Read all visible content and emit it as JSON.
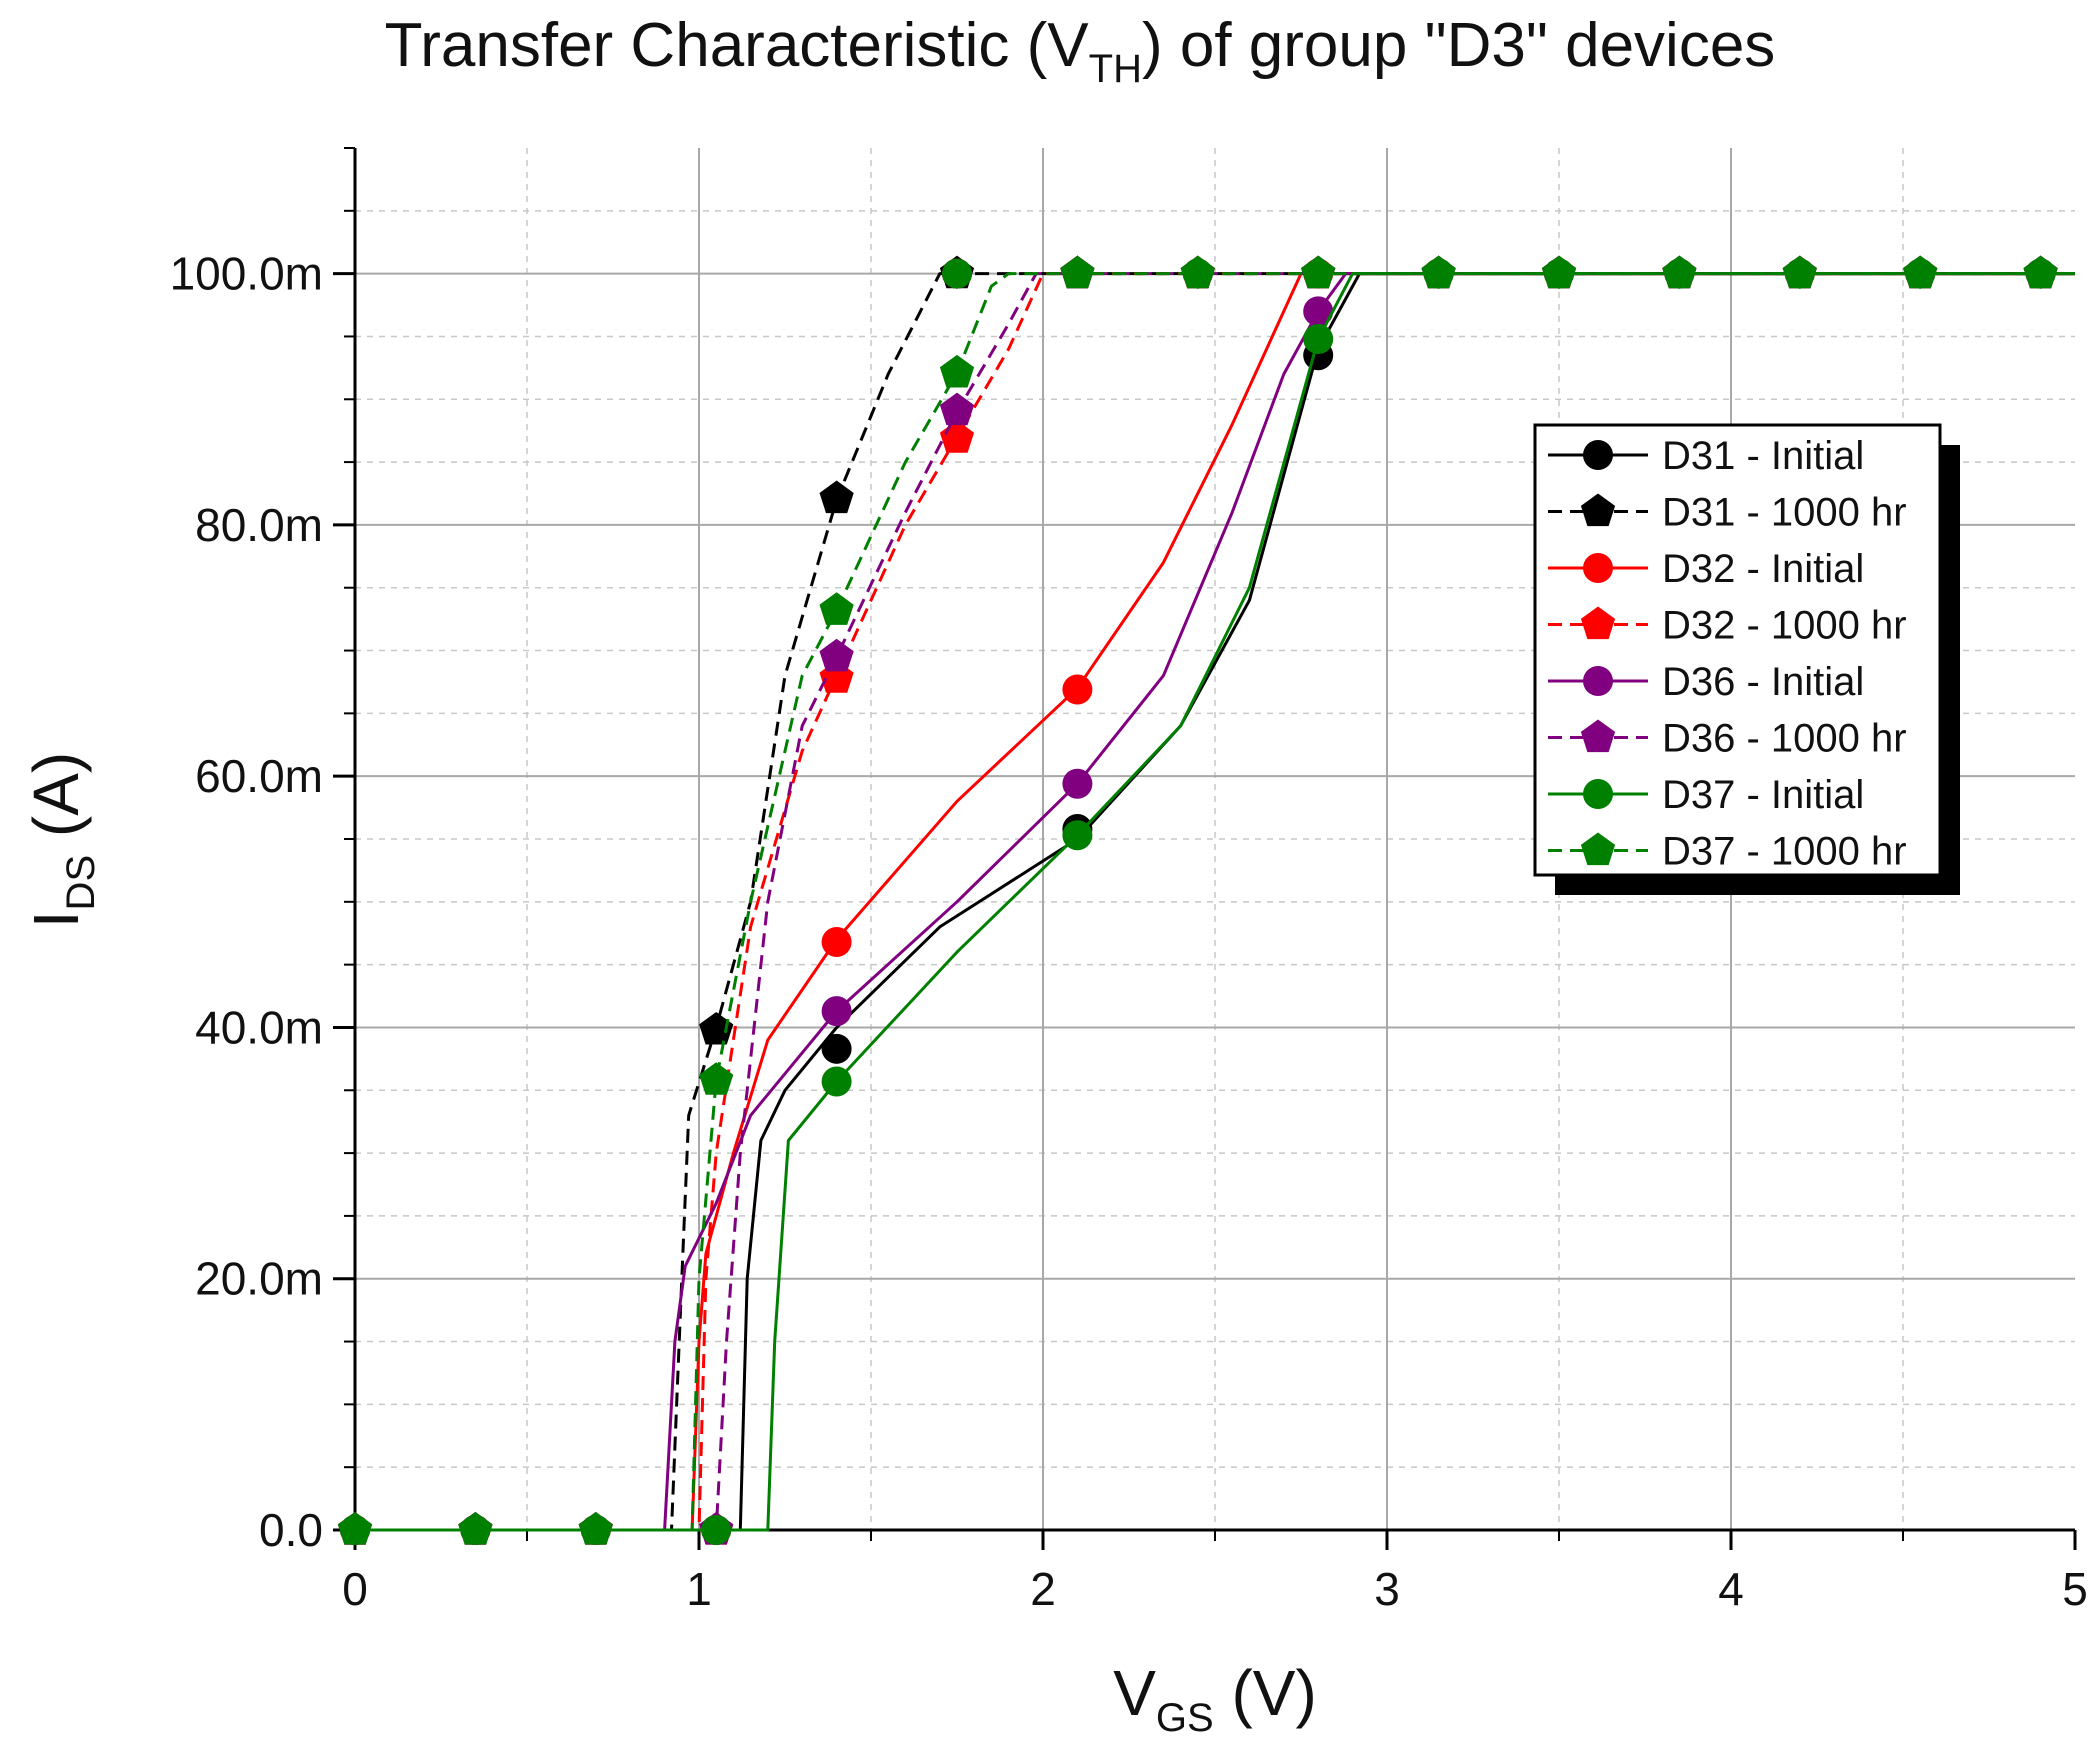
{
  "chart_data": {
    "type": "line",
    "title": {
      "main": "Transfer Characteristic (V",
      "sub": "TH",
      "rest": ") of group \"D3\" devices"
    },
    "xlabel": {
      "main": "V",
      "sub": "GS",
      "rest": " (V)"
    },
    "ylabel": {
      "main": "I",
      "sub": "DS",
      "rest": " (A)"
    },
    "xlim": [
      0,
      5
    ],
    "ylim": [
      0,
      0.11
    ],
    "x_ticks": [
      {
        "value": 0,
        "label": "0"
      },
      {
        "value": 1,
        "label": "1"
      },
      {
        "value": 2,
        "label": "2"
      },
      {
        "value": 3,
        "label": "3"
      },
      {
        "value": 4,
        "label": "4"
      },
      {
        "value": 5,
        "label": "5"
      }
    ],
    "y_ticks": [
      {
        "value": 0,
        "label": "0.0"
      },
      {
        "value": 0.02,
        "label": "20.0m"
      },
      {
        "value": 0.04,
        "label": "40.0m"
      },
      {
        "value": 0.06,
        "label": "60.0m"
      },
      {
        "value": 0.08,
        "label": "80.0m"
      },
      {
        "value": 0.1,
        "label": "100.0m"
      }
    ],
    "grid": true,
    "legend_position": "right",
    "series": [
      {
        "name": "D31 - Initial",
        "color": "#000000",
        "dash": "solid",
        "marker": "circle",
        "curve": [
          [
            0,
            0
          ],
          [
            1.12,
            0
          ],
          [
            1.14,
            0.02
          ],
          [
            1.18,
            0.031
          ],
          [
            1.25,
            0.035
          ],
          [
            1.4,
            0.04
          ],
          [
            1.7,
            0.048
          ],
          [
            2.1,
            0.055
          ],
          [
            2.4,
            0.064
          ],
          [
            2.6,
            0.074
          ],
          [
            2.8,
            0.094
          ],
          [
            2.92,
            0.1
          ],
          [
            5,
            0.1
          ]
        ],
        "markers": [
          [
            0,
            0
          ],
          [
            0.35,
            0
          ],
          [
            0.7,
            0
          ],
          [
            1.05,
            0
          ],
          [
            1.4,
            0.0383
          ],
          [
            1.75,
            0.1
          ],
          [
            2.1,
            0.0558
          ],
          [
            2.45,
            0.1
          ],
          [
            2.8,
            0.0935
          ],
          [
            3.15,
            0.1
          ],
          [
            3.5,
            0.1
          ],
          [
            3.85,
            0.1
          ],
          [
            4.2,
            0.1
          ],
          [
            4.55,
            0.1
          ],
          [
            4.9,
            0.1
          ]
        ]
      },
      {
        "name": "D31 - 1000 hr",
        "color": "#000000",
        "dash": "dashed",
        "marker": "pentagon",
        "curve": [
          [
            0,
            0
          ],
          [
            0.92,
            0
          ],
          [
            0.95,
            0.02
          ],
          [
            0.97,
            0.033
          ],
          [
            1.05,
            0.04
          ],
          [
            1.15,
            0.05
          ],
          [
            1.25,
            0.068
          ],
          [
            1.4,
            0.082
          ],
          [
            1.55,
            0.092
          ],
          [
            1.7,
            0.1
          ],
          [
            5,
            0.1
          ]
        ],
        "markers": [
          [
            0,
            0
          ],
          [
            0.35,
            0
          ],
          [
            0.7,
            0
          ],
          [
            1.05,
            0.0398
          ],
          [
            1.4,
            0.0821
          ],
          [
            1.75,
            0.1
          ],
          [
            2.1,
            0.1
          ],
          [
            2.45,
            0.1
          ],
          [
            2.8,
            0.1
          ],
          [
            3.15,
            0.1
          ],
          [
            3.5,
            0.1
          ],
          [
            3.85,
            0.1
          ],
          [
            4.2,
            0.1
          ],
          [
            4.55,
            0.1
          ],
          [
            4.9,
            0.1
          ]
        ]
      },
      {
        "name": "D32 - Initial",
        "color": "#ff0000",
        "dash": "solid",
        "marker": "circle",
        "curve": [
          [
            0,
            0
          ],
          [
            0.98,
            0
          ],
          [
            1.0,
            0.015
          ],
          [
            1.02,
            0.022
          ],
          [
            1.1,
            0.03
          ],
          [
            1.2,
            0.039
          ],
          [
            1.4,
            0.047
          ],
          [
            1.75,
            0.058
          ],
          [
            2.1,
            0.067
          ],
          [
            2.35,
            0.077
          ],
          [
            2.55,
            0.088
          ],
          [
            2.7,
            0.097
          ],
          [
            2.75,
            0.1
          ],
          [
            5,
            0.1
          ]
        ],
        "markers": [
          [
            0,
            0
          ],
          [
            0.35,
            0
          ],
          [
            0.7,
            0
          ],
          [
            1.05,
            0
          ],
          [
            1.4,
            0.0468
          ],
          [
            1.75,
            0.1
          ],
          [
            2.1,
            0.0669
          ],
          [
            2.45,
            0.1
          ],
          [
            2.8,
            0.1
          ],
          [
            3.15,
            0.1
          ],
          [
            3.5,
            0.1
          ],
          [
            3.85,
            0.1
          ],
          [
            4.2,
            0.1
          ],
          [
            4.55,
            0.1
          ],
          [
            4.9,
            0.1
          ]
        ]
      },
      {
        "name": "D32 - 1000 hr",
        "color": "#ff0000",
        "dash": "dashed",
        "marker": "pentagon",
        "curve": [
          [
            0,
            0
          ],
          [
            1.0,
            0
          ],
          [
            1.02,
            0.02
          ],
          [
            1.05,
            0.03
          ],
          [
            1.15,
            0.048
          ],
          [
            1.3,
            0.062
          ],
          [
            1.4,
            0.068
          ],
          [
            1.6,
            0.08
          ],
          [
            1.75,
            0.087
          ],
          [
            1.9,
            0.094
          ],
          [
            2.0,
            0.1
          ],
          [
            5,
            0.1
          ]
        ],
        "markers": [
          [
            0,
            0
          ],
          [
            0.35,
            0
          ],
          [
            0.7,
            0
          ],
          [
            1.05,
            0
          ],
          [
            1.4,
            0.0678
          ],
          [
            1.75,
            0.0869
          ],
          [
            2.1,
            0.1
          ],
          [
            2.45,
            0.1
          ],
          [
            2.8,
            0.1
          ],
          [
            3.15,
            0.1
          ],
          [
            3.5,
            0.1
          ],
          [
            3.85,
            0.1
          ],
          [
            4.2,
            0.1
          ],
          [
            4.55,
            0.1
          ],
          [
            4.9,
            0.1
          ]
        ]
      },
      {
        "name": "D36 - Initial",
        "color": "#800080",
        "dash": "solid",
        "marker": "circle",
        "curve": [
          [
            0,
            0
          ],
          [
            0.9,
            0
          ],
          [
            0.93,
            0.015
          ],
          [
            0.96,
            0.021
          ],
          [
            1.05,
            0.026
          ],
          [
            1.15,
            0.033
          ],
          [
            1.4,
            0.0413
          ],
          [
            1.75,
            0.05
          ],
          [
            2.1,
            0.0594
          ],
          [
            2.35,
            0.068
          ],
          [
            2.55,
            0.081
          ],
          [
            2.7,
            0.092
          ],
          [
            2.8,
            0.097
          ],
          [
            2.88,
            0.1
          ],
          [
            5,
            0.1
          ]
        ],
        "markers": [
          [
            0,
            0
          ],
          [
            0.35,
            0
          ],
          [
            0.7,
            0
          ],
          [
            1.05,
            0
          ],
          [
            1.4,
            0.0413
          ],
          [
            1.75,
            0.1
          ],
          [
            2.1,
            0.0594
          ],
          [
            2.45,
            0.1
          ],
          [
            2.8,
            0.097
          ],
          [
            3.15,
            0.1
          ],
          [
            3.5,
            0.1
          ],
          [
            3.85,
            0.1
          ],
          [
            4.2,
            0.1
          ],
          [
            4.55,
            0.1
          ],
          [
            4.9,
            0.1
          ]
        ]
      },
      {
        "name": "D36 - 1000 hr",
        "color": "#800080",
        "dash": "dashed",
        "marker": "pentagon",
        "curve": [
          [
            0,
            0
          ],
          [
            1.05,
            0
          ],
          [
            1.08,
            0.015
          ],
          [
            1.12,
            0.03
          ],
          [
            1.2,
            0.05
          ],
          [
            1.3,
            0.064
          ],
          [
            1.4,
            0.0695
          ],
          [
            1.6,
            0.081
          ],
          [
            1.75,
            0.089
          ],
          [
            1.9,
            0.096
          ],
          [
            1.98,
            0.1
          ],
          [
            5,
            0.1
          ]
        ],
        "markers": [
          [
            0,
            0
          ],
          [
            0.35,
            0
          ],
          [
            0.7,
            0
          ],
          [
            1.05,
            0
          ],
          [
            1.4,
            0.0695
          ],
          [
            1.75,
            0.0891
          ],
          [
            2.1,
            0.1
          ],
          [
            2.45,
            0.1
          ],
          [
            2.8,
            0.1
          ],
          [
            3.15,
            0.1
          ],
          [
            3.5,
            0.1
          ],
          [
            3.85,
            0.1
          ],
          [
            4.2,
            0.1
          ],
          [
            4.55,
            0.1
          ],
          [
            4.9,
            0.1
          ]
        ]
      },
      {
        "name": "D37 - Initial",
        "color": "#008000",
        "dash": "solid",
        "marker": "circle",
        "curve": [
          [
            0,
            0
          ],
          [
            1.2,
            0
          ],
          [
            1.22,
            0.015
          ],
          [
            1.26,
            0.031
          ],
          [
            1.4,
            0.0357
          ],
          [
            1.75,
            0.046
          ],
          [
            2.1,
            0.0553
          ],
          [
            2.4,
            0.064
          ],
          [
            2.6,
            0.075
          ],
          [
            2.8,
            0.0948
          ],
          [
            2.9,
            0.1
          ],
          [
            5,
            0.1
          ]
        ],
        "markers": [
          [
            0,
            0
          ],
          [
            0.35,
            0
          ],
          [
            0.7,
            0
          ],
          [
            1.05,
            0
          ],
          [
            1.4,
            0.0357
          ],
          [
            1.75,
            0.1
          ],
          [
            2.1,
            0.0553
          ],
          [
            2.45,
            0.1
          ],
          [
            2.8,
            0.0948
          ],
          [
            3.15,
            0.1
          ],
          [
            3.5,
            0.1
          ],
          [
            3.85,
            0.1
          ],
          [
            4.2,
            0.1
          ],
          [
            4.55,
            0.1
          ],
          [
            4.9,
            0.1
          ]
        ]
      },
      {
        "name": "D37 - 1000 hr",
        "color": "#008000",
        "dash": "dashed",
        "marker": "pentagon",
        "curve": [
          [
            0,
            0
          ],
          [
            0.98,
            0
          ],
          [
            1.0,
            0.02
          ],
          [
            1.05,
            0.0358
          ],
          [
            1.15,
            0.05
          ],
          [
            1.3,
            0.068
          ],
          [
            1.4,
            0.0732
          ],
          [
            1.6,
            0.085
          ],
          [
            1.75,
            0.0921
          ],
          [
            1.85,
            0.099
          ],
          [
            1.9,
            0.1
          ],
          [
            5,
            0.1
          ]
        ],
        "markers": [
          [
            0,
            0
          ],
          [
            0.35,
            0
          ],
          [
            0.7,
            0
          ],
          [
            1.05,
            0.0358
          ],
          [
            1.4,
            0.0732
          ],
          [
            1.75,
            0.0921
          ],
          [
            2.1,
            0.1
          ],
          [
            2.45,
            0.1
          ],
          [
            2.8,
            0.1
          ],
          [
            3.15,
            0.1
          ],
          [
            3.5,
            0.1
          ],
          [
            3.85,
            0.1
          ],
          [
            4.2,
            0.1
          ],
          [
            4.55,
            0.1
          ],
          [
            4.9,
            0.1
          ]
        ]
      }
    ]
  }
}
